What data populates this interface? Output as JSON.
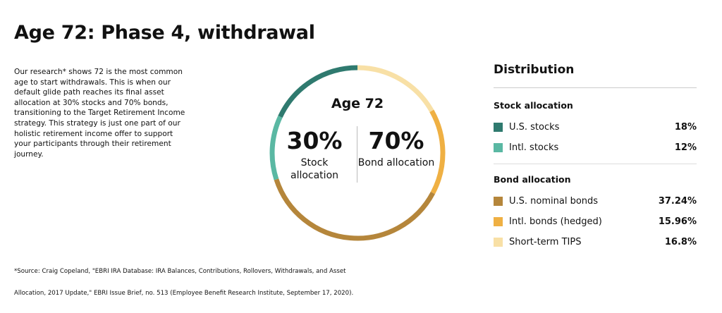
{
  "title": "Age 72: Phase 4, withdrawal",
  "intro": "Our research* shows 72 is the most common age to start withdrawals. This is when our default glide path reaches its final asset allocation at 30% stocks and 70% bonds, transitioning to the Target Retirement Income strategy. This strategy is just one part of our holistic retirement income offer to support your participants through their retirement journey.",
  "center": {
    "age": "Age 72",
    "stock_pct": "30%",
    "stock_label": "Stock allocation",
    "bond_pct": "70%",
    "bond_label": "Bond allocation"
  },
  "distribution": {
    "heading": "Distribution",
    "stock_heading": "Stock allocation",
    "bond_heading": "Bond allocation"
  },
  "chart_data": {
    "type": "pie",
    "donut": true,
    "order": "clockwise from top",
    "slices": [
      {
        "label": "Short-term TIPS",
        "value": 16.8,
        "display": "16.8%",
        "color": "#f8e0a6",
        "group": "bond"
      },
      {
        "label": "Intl. bonds (hedged)",
        "value": 15.96,
        "display": "15.96%",
        "color": "#efb043",
        "group": "bond"
      },
      {
        "label": "U.S. nominal bonds",
        "value": 37.24,
        "display": "37.24%",
        "color": "#b5863b",
        "group": "bond"
      },
      {
        "label": "Intl. stocks",
        "value": 12,
        "display": "12%",
        "color": "#5ab8a3",
        "group": "stock"
      },
      {
        "label": "U.S. stocks",
        "value": 18,
        "display": "18%",
        "color": "#2f7a6f",
        "group": "stock"
      }
    ]
  },
  "source_line1": "*Source: Craig Copeland, \"EBRI IRA Database: IRA Balances, Contributions, Rollovers, Withdrawals, and Asset",
  "source_line2": "Allocation, 2017 Update,\" EBRI Issue Brief, no. 513 (Employee Benefit Research Institute, September 17, 2020)."
}
